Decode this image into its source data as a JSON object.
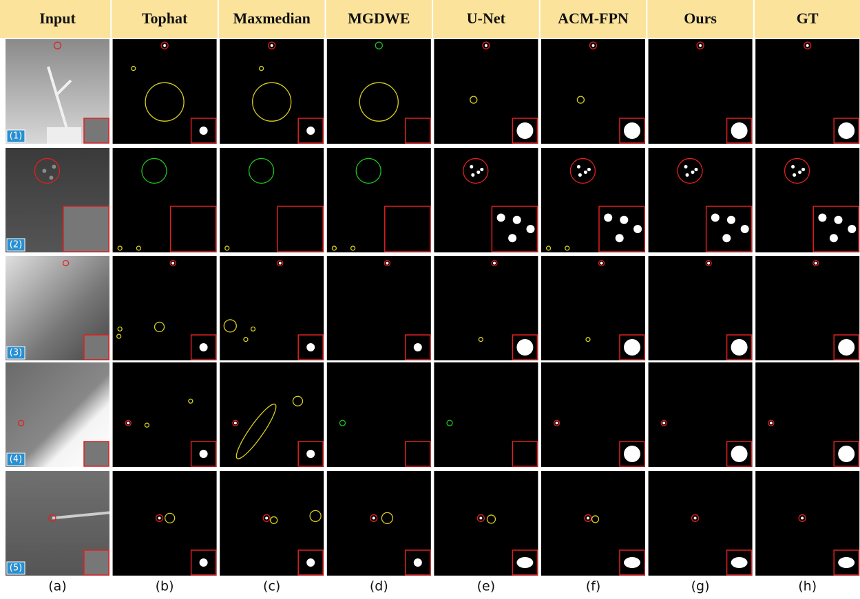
{
  "header": {
    "columns": [
      "Input",
      "Tophat",
      "Maxmedian",
      "MGDWE",
      "U-Net",
      "ACM-FPN",
      "Ours",
      "GT"
    ]
  },
  "rows": [
    {
      "label": "(1)"
    },
    {
      "label": "(2)"
    },
    {
      "label": "(3)"
    },
    {
      "label": "(4)"
    },
    {
      "label": "(5)"
    }
  ],
  "captions": [
    "(a)",
    "(b)",
    "(c)",
    "(d)",
    "(e)",
    "(f)",
    "(g)",
    "(h)"
  ]
}
